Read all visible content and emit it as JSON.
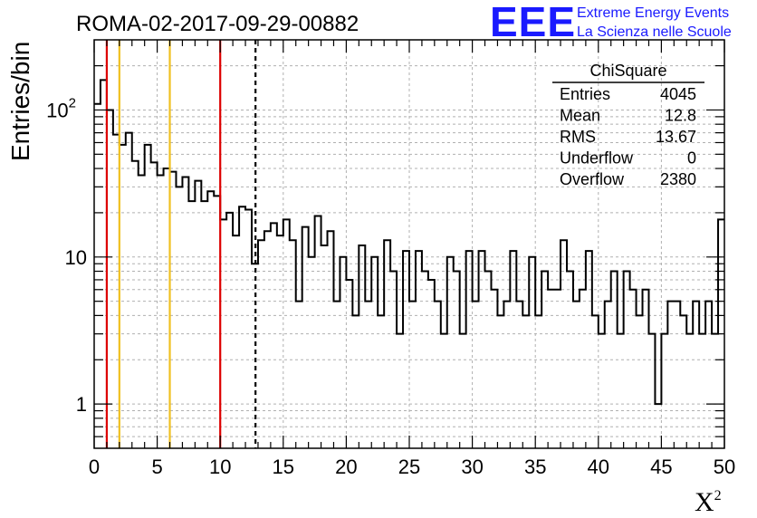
{
  "header": {
    "run_title": "ROMA-02-2017-09-29-00882",
    "logo_text": "EEE",
    "logo_line1": "Extreme Energy Events",
    "logo_line2": "La Scienza nelle Scuole"
  },
  "stats": {
    "title": "ChiSquare",
    "rows": [
      {
        "label": "Entries",
        "value": "4045"
      },
      {
        "label": "Mean",
        "value": "12.8"
      },
      {
        "label": "RMS",
        "value": "13.67"
      },
      {
        "label": "Underflow",
        "value": "0"
      },
      {
        "label": "Overflow",
        "value": "2380"
      }
    ]
  },
  "colors": {
    "red_line": "#dd0000",
    "yellow_line": "#f0c020",
    "black_dashed": "#000000",
    "logo_blue": "#1a1aff"
  },
  "chart_data": {
    "type": "histogram",
    "title": "",
    "xlabel": "X",
    "xlabel_sup": "2",
    "ylabel": "Entries/bin",
    "xlim": [
      0,
      50
    ],
    "ylim": [
      0.5,
      300
    ],
    "ylog": true,
    "grid": true,
    "bin_width": 0.5,
    "x_ticks": [
      "0",
      "5",
      "10",
      "15",
      "20",
      "25",
      "30",
      "35",
      "40",
      "45",
      "50"
    ],
    "y_ticks": [
      {
        "value": 1,
        "label": "1"
      },
      {
        "value": 10,
        "label": "10"
      },
      {
        "value": 100,
        "label": "10",
        "sup": "2"
      }
    ],
    "values": [
      110,
      160,
      100,
      68,
      58,
      70,
      45,
      36,
      58,
      44,
      36,
      40,
      38,
      30,
      35,
      24,
      33,
      24,
      28,
      26,
      18,
      20,
      14,
      22,
      21,
      9,
      13,
      15,
      17,
      14,
      18,
      13,
      5,
      16,
      10,
      19,
      12,
      15,
      5,
      10,
      7,
      4,
      12,
      5,
      10,
      4,
      13,
      8,
      3,
      11,
      5,
      11,
      8,
      7,
      5,
      3,
      10,
      8,
      3,
      11,
      5,
      11,
      8,
      6,
      4,
      5,
      11,
      5,
      4,
      10,
      4,
      8,
      6,
      6,
      13,
      8,
      5,
      6,
      11,
      4,
      3,
      5,
      8,
      3,
      8,
      6,
      4,
      6,
      3,
      1,
      3,
      5,
      5,
      4,
      3,
      5,
      3,
      5,
      3,
      18
    ],
    "vlines": [
      {
        "x": 1,
        "color": "red"
      },
      {
        "x": 2,
        "color": "yellow"
      },
      {
        "x": 6,
        "color": "yellow"
      },
      {
        "x": 10,
        "color": "red"
      },
      {
        "x": 12.8,
        "color": "black",
        "dashed": true
      }
    ]
  }
}
